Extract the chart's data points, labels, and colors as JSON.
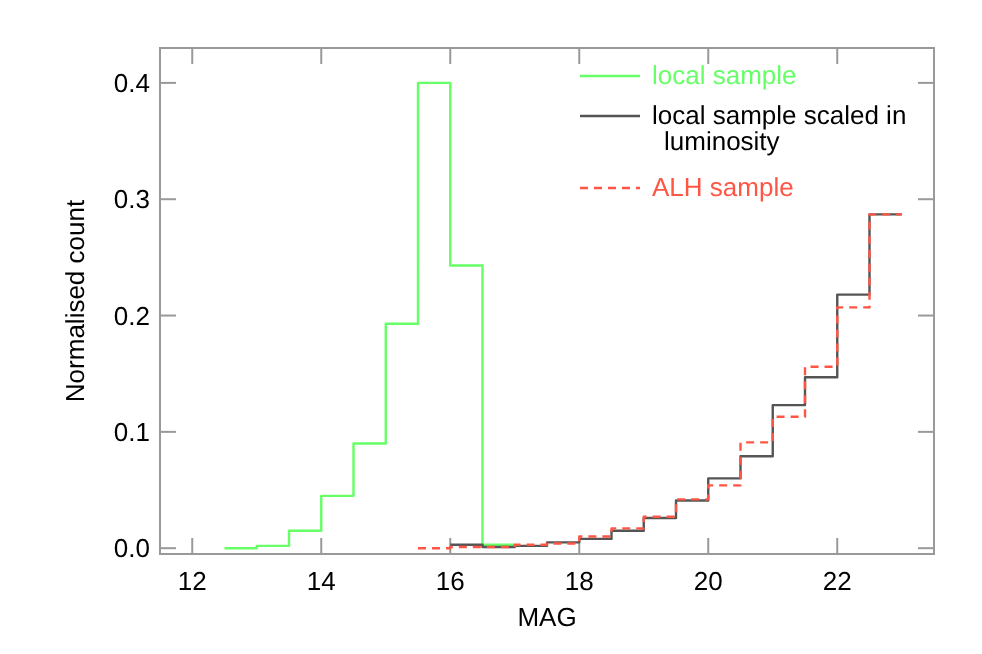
{
  "chart_data": {
    "type": "step",
    "xlabel": "MAG",
    "ylabel": "Normalised count",
    "xlim": [
      11.5,
      23.5
    ],
    "ylim": [
      -0.005,
      0.43
    ],
    "xticks": [
      12,
      14,
      16,
      18,
      20,
      22
    ],
    "yticks": [
      {
        "value": 0,
        "label": "0.0"
      },
      {
        "value": 0.1,
        "label": "0.1"
      },
      {
        "value": 0.2,
        "label": "0.2"
      },
      {
        "value": 0.3,
        "label": "0.3"
      },
      {
        "value": 0.4,
        "label": "0.4"
      }
    ],
    "legend": "top right",
    "series": [
      {
        "name": "local sample",
        "color": "#66ff66",
        "line_style": "solid",
        "x": [
          12.5,
          13,
          13.5,
          14,
          14.5,
          15,
          15.5,
          16,
          16.5,
          17
        ],
        "values": [
          0,
          0.002,
          0.015,
          0.045,
          0.09,
          0.193,
          0.4,
          0.243,
          0.003,
          0.003
        ]
      },
      {
        "name": "local sample scaled in luminosity",
        "color": "#555555",
        "line_style": "solid",
        "x": [
          16,
          16.5,
          17,
          17.5,
          18,
          18.5,
          19,
          19.5,
          20,
          20.5,
          21,
          21.5,
          22,
          22.5,
          23
        ],
        "values": [
          0.003,
          0.001,
          0.002,
          0.005,
          0.008,
          0.015,
          0.026,
          0.041,
          0.06,
          0.079,
          0.123,
          0.147,
          0.218,
          0.287,
          0.287
        ]
      },
      {
        "name": "ALH sample",
        "color": "#ff5544",
        "line_style": "dashed",
        "x": [
          15.5,
          16,
          16.5,
          17,
          17.5,
          18,
          18.5,
          19,
          19.5,
          20,
          20.5,
          21,
          21.5,
          22,
          22.5,
          23
        ],
        "values": [
          0,
          0.001,
          0.001,
          0.003,
          0.004,
          0.01,
          0.017,
          0.027,
          0.042,
          0.054,
          0.091,
          0.113,
          0.156,
          0.207,
          0.287,
          0.287
        ]
      }
    ]
  }
}
